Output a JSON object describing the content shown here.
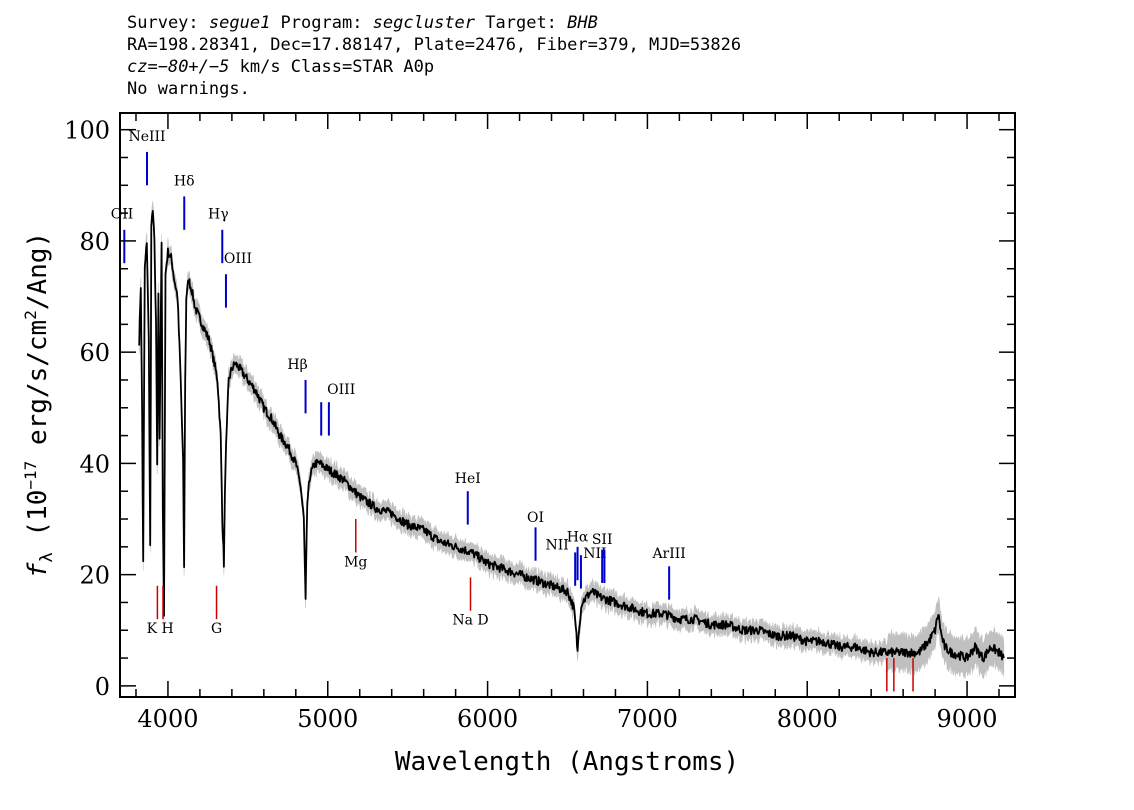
{
  "header": {
    "survey_label": "Survey: ",
    "survey_value": "segue1",
    "program_label": " Program: ",
    "program_value": "segcluster",
    "target_label": " Target: ",
    "target_value": "BHB",
    "line2": "RA=198.28341, Dec=17.88147, Plate=2476, Fiber=379, MJD=53826",
    "cz_label": "cz=",
    "cz_value": "−80+/−5",
    "cz_rest": " km/s Class=STAR A0p",
    "line4": "No warnings."
  },
  "chart_data": {
    "type": "line",
    "xlabel": "Wavelength (Angstroms)",
    "ylabel_parts": [
      "f",
      "λ",
      " (10",
      "−17",
      " erg/s/cm",
      "2",
      "/Ang)"
    ],
    "xlim": [
      3700,
      9300
    ],
    "ylim": [
      -2,
      103
    ],
    "xticks": [
      4000,
      5000,
      6000,
      7000,
      8000,
      9000
    ],
    "yticks": [
      0,
      20,
      40,
      60,
      80,
      100
    ],
    "x_minor_step": 200,
    "y_minor_step": 5,
    "series": [
      {
        "x": [
          3820,
          3830,
          3838,
          3845,
          3855,
          3868,
          3880,
          3889,
          3896,
          3905,
          3915,
          3925,
          3933,
          3940,
          3948,
          3960,
          3968,
          3975,
          3985,
          4000,
          4020,
          4040,
          4060,
          4080,
          4095,
          4101,
          4108,
          4115,
          4130,
          4150,
          4170,
          4200,
          4230,
          4260,
          4290,
          4310,
          4330,
          4340,
          4350,
          4360,
          4380,
          4400,
          4420,
          4450,
          4500,
          4550,
          4600,
          4650,
          4700,
          4750,
          4800,
          4830,
          4850,
          4861,
          4872,
          4890,
          4920,
          4950,
          5000,
          5100,
          5200,
          5300,
          5400,
          5500,
          5600,
          5700,
          5800,
          5900,
          6000,
          6100,
          6200,
          6300,
          6400,
          6500,
          6540,
          6556,
          6563,
          6570,
          6590,
          6650,
          6700,
          6800,
          6900,
          7000,
          7100,
          7200,
          7300,
          7400,
          7500,
          7600,
          7700,
          7800,
          7900,
          8000,
          8100,
          8200,
          8300,
          8400,
          8500,
          8600,
          8700,
          8760,
          8800,
          8820,
          8840,
          8860,
          8900,
          9000,
          9050,
          9100,
          9150,
          9200,
          9230
        ],
        "y": [
          62,
          72,
          50,
          22,
          75,
          80,
          62,
          25,
          82,
          86,
          80,
          65,
          40,
          70,
          45,
          80,
          32,
          12,
          74,
          78,
          77,
          73,
          70,
          55,
          40,
          21,
          55,
          70,
          73,
          71,
          68,
          66,
          64,
          62,
          58,
          55,
          45,
          30,
          22,
          40,
          55,
          57,
          58,
          57,
          55,
          53,
          50,
          48,
          45,
          43,
          40,
          36,
          30,
          15,
          33,
          38,
          40,
          40,
          39,
          37,
          34,
          32,
          31,
          29,
          28,
          26,
          25,
          24,
          22,
          21,
          20,
          19,
          18,
          17,
          14,
          9,
          6,
          10,
          15,
          17,
          16,
          15,
          14,
          13,
          13,
          12,
          12,
          11,
          11,
          10,
          10,
          9,
          9,
          8,
          8,
          7,
          7,
          6,
          6,
          6,
          6,
          8,
          10,
          13,
          9,
          7,
          6,
          5,
          7,
          5,
          7,
          6,
          5
        ]
      }
    ],
    "colors": {
      "spectrum": "#000000",
      "error": "#c0c0c0",
      "emission": "#0000cc",
      "absorption": "#cc0000"
    },
    "emission_lines": [
      {
        "label": "OII",
        "x": 3727,
        "y_bottom": 76,
        "y_top": 82,
        "label_y": 84,
        "label_dx": -10
      },
      {
        "label": "NeIII",
        "x": 3869,
        "y_bottom": 90,
        "y_top": 96,
        "label_y": 98,
        "label_dx": 0
      },
      {
        "label": "Hδ",
        "x": 4102,
        "y_bottom": 82,
        "y_top": 88,
        "label_y": 90,
        "label_dx": 0
      },
      {
        "label": "Hγ",
        "x": 4340,
        "y_bottom": 76,
        "y_top": 82,
        "label_y": 84,
        "label_dx": -4
      },
      {
        "label": "OIII",
        "x": 4363,
        "y_bottom": 68,
        "y_top": 74,
        "label_y": 76,
        "label_dx": 12
      },
      {
        "label": "Hβ",
        "x": 4861,
        "y_bottom": 49,
        "y_top": 55,
        "label_y": 57,
        "label_dx": -8
      },
      {
        "label": "OIII",
        "x": 4959,
        "y_bottom": 45,
        "y_top": 51,
        "label_y": 52.5,
        "label_dx": 20
      },
      {
        "label": "",
        "x": 5007,
        "y_bottom": 45,
        "y_top": 51,
        "label_y": 0,
        "label_dx": 0
      },
      {
        "label": "HeI",
        "x": 5876,
        "y_bottom": 29,
        "y_top": 35,
        "label_y": 36.5,
        "label_dx": 0
      },
      {
        "label": "OI",
        "x": 6300,
        "y_bottom": 22.5,
        "y_top": 28.5,
        "label_y": 29.5,
        "label_dx": 0
      },
      {
        "label": "NII",
        "x": 6548,
        "y_bottom": 18,
        "y_top": 24,
        "label_y": 24.5,
        "label_dx": -18
      },
      {
        "label": "Hα",
        "x": 6563,
        "y_bottom": 19,
        "y_top": 25,
        "label_y": 26,
        "label_dx": 0
      },
      {
        "label": "NII",
        "x": 6584,
        "y_bottom": 17.5,
        "y_top": 23.5,
        "label_y": 23,
        "label_dx": 14
      },
      {
        "label": "SII",
        "x": 6717,
        "y_bottom": 18.5,
        "y_top": 24.5,
        "label_y": 25.5,
        "label_dx": 0
      },
      {
        "label": "",
        "x": 6731,
        "y_bottom": 18.5,
        "y_top": 24.5,
        "label_y": 0,
        "label_dx": 0
      },
      {
        "label": "ArIII",
        "x": 7136,
        "y_bottom": 15.5,
        "y_top": 21.5,
        "label_y": 23,
        "label_dx": 0
      }
    ],
    "absorption_lines": [
      {
        "label": "K H",
        "x": 3934,
        "x2": 3969,
        "y_bottom": 12,
        "y_top": 18,
        "label_y": 9.5
      },
      {
        "label": "G",
        "x": 4304,
        "y_bottom": 12,
        "y_top": 18,
        "label_y": 9.5
      },
      {
        "label": "Mg",
        "x": 5175,
        "y_bottom": 24,
        "y_top": 30,
        "label_y": 21.5
      },
      {
        "label": "Na  D",
        "x": 5893,
        "y_bottom": 13.5,
        "y_top": 19.5,
        "label_y": 11
      },
      {
        "label": "",
        "x": 8498,
        "y_bottom": -1,
        "y_top": 5,
        "label_y": 0
      },
      {
        "label": "",
        "x": 8542,
        "y_bottom": -1,
        "y_top": 5,
        "label_y": 0
      },
      {
        "label": "",
        "x": 8662,
        "y_bottom": -1,
        "y_top": 5,
        "label_y": 0
      }
    ]
  }
}
